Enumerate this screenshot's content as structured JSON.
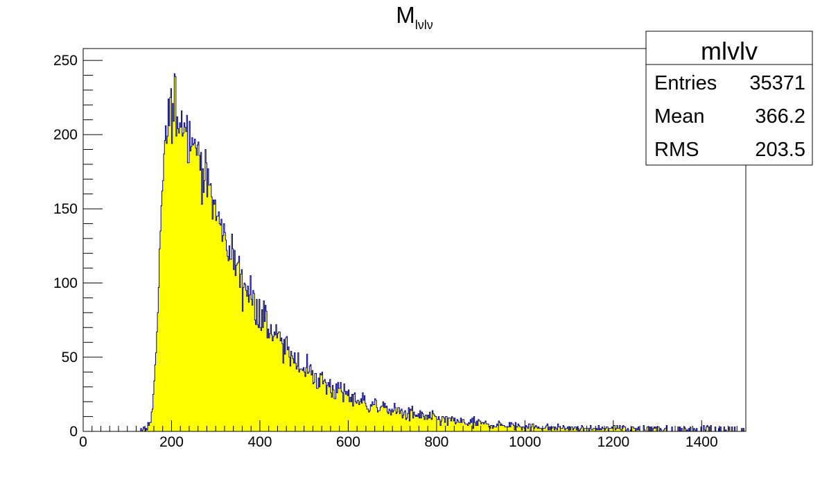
{
  "colors": {
    "fill": "#ffff00",
    "line": "#000099",
    "frame": "#000000",
    "background": "#ffffff"
  },
  "title_main": "M",
  "title_sub": "lνlν",
  "stats": {
    "name": "mlvlv",
    "rows": [
      {
        "label": "Entries",
        "value": "35371"
      },
      {
        "label": "Mean",
        "value": "366.2"
      },
      {
        "label": "RMS",
        "value": "203.5"
      }
    ]
  },
  "chart_data": {
    "type": "bar",
    "xlim": [
      0,
      1500
    ],
    "ylim": [
      0,
      258
    ],
    "xticks": [
      "0",
      "200",
      "400",
      "600",
      "800",
      "1000",
      "1200",
      "1400"
    ],
    "yticks": [
      "0",
      "50",
      "100",
      "150",
      "200",
      "250"
    ],
    "xlabel": "",
    "ylabel": "",
    "grid": false,
    "bin_width": 2,
    "envelope": {
      "x": [
        0,
        100,
        120,
        140,
        150,
        155,
        160,
        165,
        170,
        175,
        180,
        185,
        190,
        195,
        200,
        205,
        210,
        215,
        220,
        225,
        230,
        240,
        250,
        260,
        270,
        280,
        290,
        300,
        320,
        340,
        360,
        380,
        400,
        420,
        440,
        460,
        480,
        500,
        520,
        540,
        560,
        580,
        600,
        650,
        700,
        750,
        800,
        850,
        900,
        950,
        1000,
        1050,
        1100,
        1200,
        1300,
        1400,
        1500
      ],
      "y": [
        0,
        0,
        0.5,
        2,
        5,
        10,
        25,
        55,
        90,
        125,
        160,
        190,
        205,
        212,
        215,
        216,
        216,
        215,
        213,
        211,
        208,
        203,
        196,
        188,
        178,
        168,
        158,
        148,
        131,
        116,
        103,
        91,
        80,
        70,
        62,
        55,
        49,
        43,
        38,
        34,
        30,
        27,
        24,
        18,
        14,
        11,
        8.5,
        6.5,
        5,
        4,
        3.2,
        2.6,
        2.1,
        1.5,
        1.1,
        0.8,
        0.6
      ]
    }
  }
}
